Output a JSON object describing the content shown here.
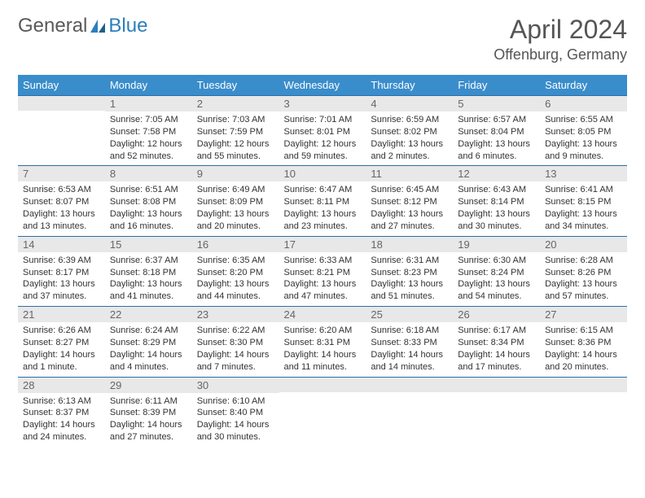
{
  "logo": {
    "text1": "General",
    "text2": "Blue"
  },
  "title": "April 2024",
  "location": "Offenburg, Germany",
  "colors": {
    "header_bg": "#3a8dcb",
    "row_border": "#2b6fa8",
    "daynum_bg": "#e8e8e8",
    "logo_blue": "#2b7fbc"
  },
  "weekdays": [
    "Sunday",
    "Monday",
    "Tuesday",
    "Wednesday",
    "Thursday",
    "Friday",
    "Saturday"
  ],
  "days": [
    {
      "n": "",
      "lines": [
        "",
        "",
        "",
        ""
      ]
    },
    {
      "n": "1",
      "lines": [
        "Sunrise: 7:05 AM",
        "Sunset: 7:58 PM",
        "Daylight: 12 hours",
        "and 52 minutes."
      ]
    },
    {
      "n": "2",
      "lines": [
        "Sunrise: 7:03 AM",
        "Sunset: 7:59 PM",
        "Daylight: 12 hours",
        "and 55 minutes."
      ]
    },
    {
      "n": "3",
      "lines": [
        "Sunrise: 7:01 AM",
        "Sunset: 8:01 PM",
        "Daylight: 12 hours",
        "and 59 minutes."
      ]
    },
    {
      "n": "4",
      "lines": [
        "Sunrise: 6:59 AM",
        "Sunset: 8:02 PM",
        "Daylight: 13 hours",
        "and 2 minutes."
      ]
    },
    {
      "n": "5",
      "lines": [
        "Sunrise: 6:57 AM",
        "Sunset: 8:04 PM",
        "Daylight: 13 hours",
        "and 6 minutes."
      ]
    },
    {
      "n": "6",
      "lines": [
        "Sunrise: 6:55 AM",
        "Sunset: 8:05 PM",
        "Daylight: 13 hours",
        "and 9 minutes."
      ]
    },
    {
      "n": "7",
      "lines": [
        "Sunrise: 6:53 AM",
        "Sunset: 8:07 PM",
        "Daylight: 13 hours",
        "and 13 minutes."
      ]
    },
    {
      "n": "8",
      "lines": [
        "Sunrise: 6:51 AM",
        "Sunset: 8:08 PM",
        "Daylight: 13 hours",
        "and 16 minutes."
      ]
    },
    {
      "n": "9",
      "lines": [
        "Sunrise: 6:49 AM",
        "Sunset: 8:09 PM",
        "Daylight: 13 hours",
        "and 20 minutes."
      ]
    },
    {
      "n": "10",
      "lines": [
        "Sunrise: 6:47 AM",
        "Sunset: 8:11 PM",
        "Daylight: 13 hours",
        "and 23 minutes."
      ]
    },
    {
      "n": "11",
      "lines": [
        "Sunrise: 6:45 AM",
        "Sunset: 8:12 PM",
        "Daylight: 13 hours",
        "and 27 minutes."
      ]
    },
    {
      "n": "12",
      "lines": [
        "Sunrise: 6:43 AM",
        "Sunset: 8:14 PM",
        "Daylight: 13 hours",
        "and 30 minutes."
      ]
    },
    {
      "n": "13",
      "lines": [
        "Sunrise: 6:41 AM",
        "Sunset: 8:15 PM",
        "Daylight: 13 hours",
        "and 34 minutes."
      ]
    },
    {
      "n": "14",
      "lines": [
        "Sunrise: 6:39 AM",
        "Sunset: 8:17 PM",
        "Daylight: 13 hours",
        "and 37 minutes."
      ]
    },
    {
      "n": "15",
      "lines": [
        "Sunrise: 6:37 AM",
        "Sunset: 8:18 PM",
        "Daylight: 13 hours",
        "and 41 minutes."
      ]
    },
    {
      "n": "16",
      "lines": [
        "Sunrise: 6:35 AM",
        "Sunset: 8:20 PM",
        "Daylight: 13 hours",
        "and 44 minutes."
      ]
    },
    {
      "n": "17",
      "lines": [
        "Sunrise: 6:33 AM",
        "Sunset: 8:21 PM",
        "Daylight: 13 hours",
        "and 47 minutes."
      ]
    },
    {
      "n": "18",
      "lines": [
        "Sunrise: 6:31 AM",
        "Sunset: 8:23 PM",
        "Daylight: 13 hours",
        "and 51 minutes."
      ]
    },
    {
      "n": "19",
      "lines": [
        "Sunrise: 6:30 AM",
        "Sunset: 8:24 PM",
        "Daylight: 13 hours",
        "and 54 minutes."
      ]
    },
    {
      "n": "20",
      "lines": [
        "Sunrise: 6:28 AM",
        "Sunset: 8:26 PM",
        "Daylight: 13 hours",
        "and 57 minutes."
      ]
    },
    {
      "n": "21",
      "lines": [
        "Sunrise: 6:26 AM",
        "Sunset: 8:27 PM",
        "Daylight: 14 hours",
        "and 1 minute."
      ]
    },
    {
      "n": "22",
      "lines": [
        "Sunrise: 6:24 AM",
        "Sunset: 8:29 PM",
        "Daylight: 14 hours",
        "and 4 minutes."
      ]
    },
    {
      "n": "23",
      "lines": [
        "Sunrise: 6:22 AM",
        "Sunset: 8:30 PM",
        "Daylight: 14 hours",
        "and 7 minutes."
      ]
    },
    {
      "n": "24",
      "lines": [
        "Sunrise: 6:20 AM",
        "Sunset: 8:31 PM",
        "Daylight: 14 hours",
        "and 11 minutes."
      ]
    },
    {
      "n": "25",
      "lines": [
        "Sunrise: 6:18 AM",
        "Sunset: 8:33 PM",
        "Daylight: 14 hours",
        "and 14 minutes."
      ]
    },
    {
      "n": "26",
      "lines": [
        "Sunrise: 6:17 AM",
        "Sunset: 8:34 PM",
        "Daylight: 14 hours",
        "and 17 minutes."
      ]
    },
    {
      "n": "27",
      "lines": [
        "Sunrise: 6:15 AM",
        "Sunset: 8:36 PM",
        "Daylight: 14 hours",
        "and 20 minutes."
      ]
    },
    {
      "n": "28",
      "lines": [
        "Sunrise: 6:13 AM",
        "Sunset: 8:37 PM",
        "Daylight: 14 hours",
        "and 24 minutes."
      ]
    },
    {
      "n": "29",
      "lines": [
        "Sunrise: 6:11 AM",
        "Sunset: 8:39 PM",
        "Daylight: 14 hours",
        "and 27 minutes."
      ]
    },
    {
      "n": "30",
      "lines": [
        "Sunrise: 6:10 AM",
        "Sunset: 8:40 PM",
        "Daylight: 14 hours",
        "and 30 minutes."
      ]
    },
    {
      "n": "",
      "lines": [
        "",
        "",
        "",
        ""
      ]
    },
    {
      "n": "",
      "lines": [
        "",
        "",
        "",
        ""
      ]
    },
    {
      "n": "",
      "lines": [
        "",
        "",
        "",
        ""
      ]
    },
    {
      "n": "",
      "lines": [
        "",
        "",
        "",
        ""
      ]
    }
  ]
}
